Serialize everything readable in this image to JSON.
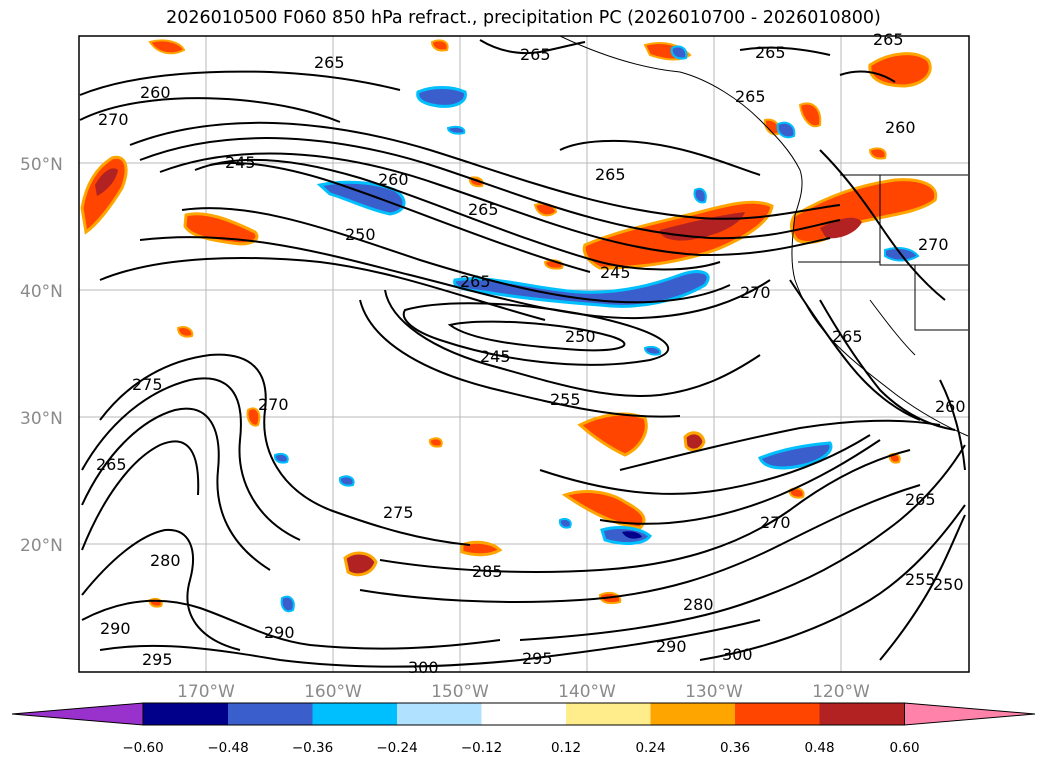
{
  "title": "2026010500 F060 850 hPa refract., precipitation PC (2026010700 - 2026010800)",
  "map": {
    "lat_labels": [
      "50°N",
      "40°N",
      "30°N",
      "20°N"
    ],
    "lon_labels": [
      "170°W",
      "160°W",
      "150°W",
      "140°W",
      "130°W",
      "120°W"
    ],
    "contour_labels": [
      {
        "text": "260"
      },
      {
        "text": "270"
      },
      {
        "text": "265"
      },
      {
        "text": "265"
      },
      {
        "text": "265"
      },
      {
        "text": "265"
      },
      {
        "text": "265"
      },
      {
        "text": "265"
      },
      {
        "text": "260"
      },
      {
        "text": "245"
      },
      {
        "text": "260"
      },
      {
        "text": "265"
      },
      {
        "text": "250"
      },
      {
        "text": "265"
      },
      {
        "text": "245"
      },
      {
        "text": "250"
      },
      {
        "text": "245"
      },
      {
        "text": "255"
      },
      {
        "text": "270"
      },
      {
        "text": "265"
      },
      {
        "text": "275"
      },
      {
        "text": "270"
      },
      {
        "text": "265"
      },
      {
        "text": "275"
      },
      {
        "text": "285"
      },
      {
        "text": "270"
      },
      {
        "text": "280"
      },
      {
        "text": "290"
      },
      {
        "text": "290"
      },
      {
        "text": "295"
      },
      {
        "text": "295"
      },
      {
        "text": "300"
      },
      {
        "text": "300"
      },
      {
        "text": "290"
      },
      {
        "text": "280"
      },
      {
        "text": "265"
      },
      {
        "text": "255"
      },
      {
        "text": "250"
      },
      {
        "text": "260"
      },
      {
        "text": "270"
      }
    ]
  },
  "colorbar": {
    "colors": [
      "#9932cc",
      "#00008b",
      "#3a5fcd",
      "#00bfff",
      "#b0e2ff",
      "#ffffff",
      "#ffec8b",
      "#ffa500",
      "#ff4500",
      "#b22222",
      "#ff82ab"
    ],
    "ticks": [
      "−0.60",
      "−0.48",
      "−0.36",
      "−0.24",
      "−0.12",
      "0.12",
      "0.24",
      "0.36",
      "0.48",
      "0.60"
    ]
  }
}
